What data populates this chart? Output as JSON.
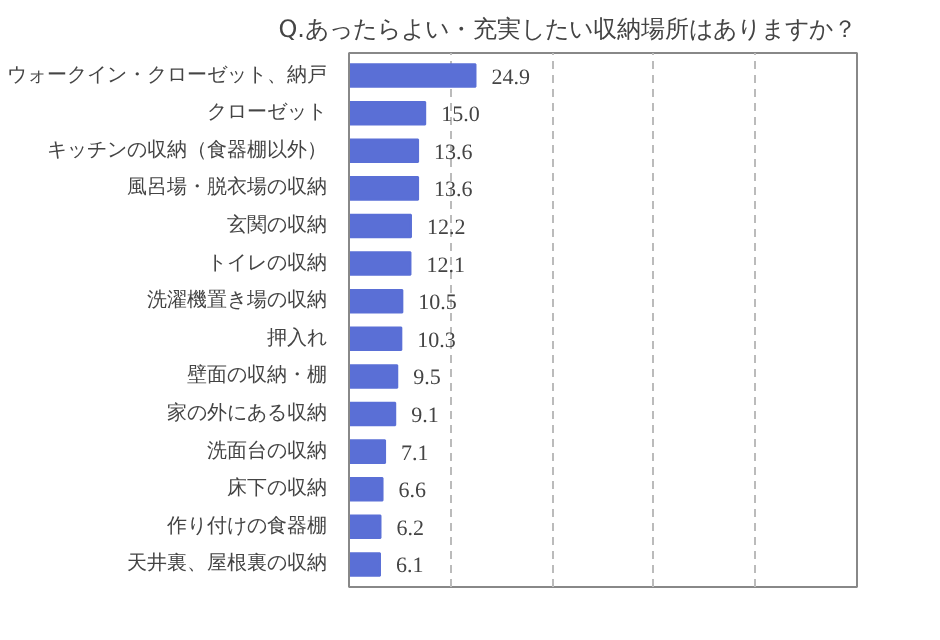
{
  "chart_data": {
    "type": "bar",
    "orientation": "horizontal",
    "title": "Q.あったらよい・充実したい収納場所はありますか？",
    "categories": [
      "ウォークイン・クローゼット、納戸",
      "クローゼット",
      "キッチンの収納（食器棚以外）",
      "風呂場・脱衣場の収納",
      "玄関の収納",
      "トイレの収納",
      "洗濯機置き場の収納",
      "押入れ",
      "壁面の収納・棚",
      "家の外にある収納",
      "洗面台の収納",
      "床下の収納",
      "作り付けの食器棚",
      "天井裏、屋根裏の収納"
    ],
    "values": [
      24.9,
      15.0,
      13.6,
      13.6,
      12.2,
      12.1,
      10.5,
      10.3,
      9.5,
      9.1,
      7.1,
      6.6,
      6.2,
      6.1
    ],
    "value_labels": [
      "24.9",
      "15.0",
      "13.6",
      "13.6",
      "12.2",
      "12.1",
      "10.5",
      "10.3",
      "9.5",
      "9.1",
      "7.1",
      "6.6",
      "6.2",
      "6.1"
    ],
    "color": "#5a6fd6",
    "xlim": [
      0,
      100
    ],
    "xticks": [
      {
        "value": 20,
        "label": null
      },
      {
        "value": 40,
        "label": null
      },
      {
        "value": 60,
        "label": null
      },
      {
        "value": 80,
        "label": null
      }
    ],
    "grid": "x",
    "tick_labels": "y"
  }
}
